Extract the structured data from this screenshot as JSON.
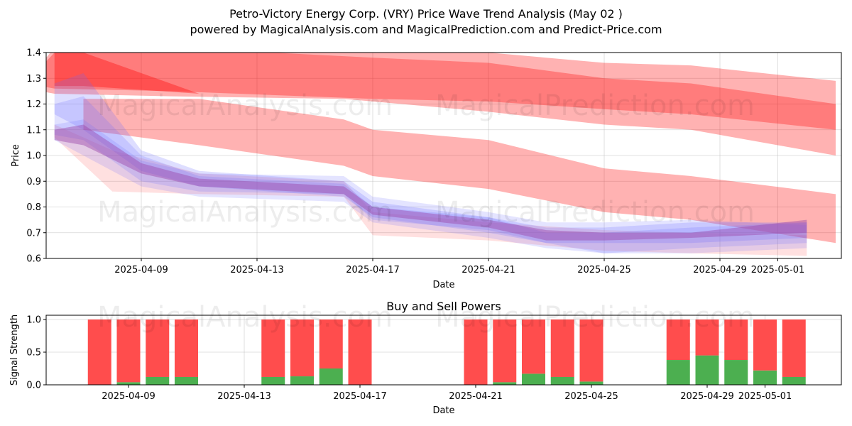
{
  "title_line1": "Petro-Victory Energy Corp. (VRY) Price Wave Trend Analysis (May 02 )",
  "title_line2": "powered by MagicalAnalysis.com and MagicalPrediction.com and Predict-Price.com",
  "watermarks": [
    "MagicalAnalysis.com",
    "MagicalPrediction.com"
  ],
  "colors": {
    "bull": "#4caf50",
    "bear": "#ff4d4d",
    "band_red": "#ff0000",
    "band_blue": "#6a6aff"
  },
  "chart_data": [
    {
      "type": "area",
      "title": "",
      "xlabel": "Date",
      "ylabel": "Price",
      "ylim": [
        0.6,
        1.4
      ],
      "yticks": [
        "0.6",
        "0.7",
        "0.8",
        "0.9",
        "1.0",
        "1.1",
        "1.2",
        "1.3",
        "1.4"
      ],
      "xticks": [
        "2025-04-09",
        "2025-04-13",
        "2025-04-17",
        "2025-04-21",
        "2025-04-25",
        "2025-04-29",
        "2025-05-01"
      ],
      "grid": true,
      "red_bands": [
        {
          "name": "upper-outer",
          "x": [
            "2025-04-05",
            "2025-04-06",
            "2025-04-10",
            "2025-04-16",
            "2025-04-21",
            "2025-04-25",
            "2025-04-28",
            "2025-05-03"
          ],
          "upper": [
            1.28,
            1.4,
            1.44,
            1.42,
            1.4,
            1.36,
            1.35,
            1.29
          ],
          "lower": [
            1.26,
            1.24,
            1.23,
            1.22,
            1.17,
            1.12,
            1.1,
            1.0
          ]
        },
        {
          "name": "upper-inner",
          "x": [
            "2025-04-05",
            "2025-04-06",
            "2025-04-10",
            "2025-04-17",
            "2025-04-21",
            "2025-04-25",
            "2025-04-28",
            "2025-05-03"
          ],
          "upper": [
            1.28,
            1.42,
            1.42,
            1.38,
            1.36,
            1.3,
            1.28,
            1.2
          ],
          "lower": [
            1.28,
            1.26,
            1.25,
            1.22,
            1.21,
            1.18,
            1.16,
            1.1
          ]
        },
        {
          "name": "spike",
          "x": [
            "2025-04-06",
            "2025-04-07",
            "2025-04-11"
          ],
          "upper": [
            1.4,
            1.4,
            1.24
          ],
          "lower": [
            1.27,
            1.27,
            1.24
          ]
        },
        {
          "name": "middle",
          "x": [
            "2025-04-07",
            "2025-04-11",
            "2025-04-16",
            "2025-04-17",
            "2025-04-21",
            "2025-04-25",
            "2025-04-28",
            "2025-05-03"
          ],
          "upper": [
            1.22,
            1.22,
            1.14,
            1.1,
            1.06,
            0.95,
            0.92,
            0.85
          ],
          "lower": [
            1.1,
            1.04,
            0.96,
            0.92,
            0.87,
            0.78,
            0.75,
            0.66
          ]
        },
        {
          "name": "lower-pink",
          "x": [
            "2025-04-06",
            "2025-04-08",
            "2025-04-11",
            "2025-04-16",
            "2025-04-17",
            "2025-04-21",
            "2025-04-25",
            "2025-04-28",
            "2025-05-02"
          ],
          "upper": [
            1.12,
            1.02,
            0.93,
            0.9,
            0.78,
            0.74,
            0.71,
            0.7,
            0.69
          ],
          "lower": [
            1.07,
            0.86,
            0.85,
            0.84,
            0.69,
            0.67,
            0.63,
            0.62,
            0.61
          ]
        }
      ],
      "blue_bands": [
        {
          "name": "wave-1",
          "x": [
            "2025-04-06",
            "2025-04-07",
            "2025-04-09",
            "2025-04-11",
            "2025-04-16",
            "2025-04-17",
            "2025-04-21",
            "2025-04-23",
            "2025-04-25",
            "2025-04-28",
            "2025-05-02"
          ],
          "upper": [
            1.28,
            1.32,
            1.02,
            0.94,
            0.9,
            0.82,
            0.76,
            0.72,
            0.72,
            0.74,
            0.74
          ],
          "lower": [
            1.16,
            1.1,
            0.94,
            0.88,
            0.84,
            0.76,
            0.7,
            0.66,
            0.66,
            0.66,
            0.68
          ]
        },
        {
          "name": "wave-2",
          "x": [
            "2025-04-06",
            "2025-04-07",
            "2025-04-09",
            "2025-04-11",
            "2025-04-16",
            "2025-04-17",
            "2025-04-21",
            "2025-04-23",
            "2025-04-25",
            "2025-04-28",
            "2025-05-02"
          ],
          "upper": [
            1.2,
            1.23,
            1.0,
            0.92,
            0.89,
            0.8,
            0.76,
            0.7,
            0.7,
            0.72,
            0.74
          ],
          "lower": [
            1.08,
            1.06,
            0.9,
            0.86,
            0.85,
            0.75,
            0.71,
            0.66,
            0.62,
            0.64,
            0.66
          ]
        },
        {
          "name": "wave-3",
          "x": [
            "2025-04-06",
            "2025-04-07",
            "2025-04-09",
            "2025-04-11",
            "2025-04-16",
            "2025-04-17",
            "2025-04-21",
            "2025-04-23",
            "2025-04-25",
            "2025-04-28",
            "2025-05-02"
          ],
          "upper": [
            1.12,
            1.14,
            0.98,
            0.93,
            0.92,
            0.84,
            0.78,
            0.74,
            0.74,
            0.75,
            0.73
          ],
          "lower": [
            1.06,
            1.0,
            0.88,
            0.84,
            0.82,
            0.74,
            0.68,
            0.64,
            0.62,
            0.62,
            0.64
          ]
        },
        {
          "name": "wave-4",
          "x": [
            "2025-04-06",
            "2025-04-07",
            "2025-04-09",
            "2025-04-11",
            "2025-04-16",
            "2025-04-17",
            "2025-04-21",
            "2025-04-23",
            "2025-04-25",
            "2025-04-28",
            "2025-05-02"
          ],
          "upper": [
            1.1,
            1.12,
            0.97,
            0.91,
            0.88,
            0.8,
            0.75,
            0.71,
            0.7,
            0.7,
            0.75
          ],
          "lower": [
            1.06,
            1.04,
            0.93,
            0.88,
            0.85,
            0.77,
            0.72,
            0.67,
            0.67,
            0.68,
            0.7
          ]
        }
      ]
    },
    {
      "type": "bar",
      "title": "Buy and Sell Powers",
      "xlabel": "Date",
      "ylabel": "Signal Strength",
      "ylim": [
        0.0,
        1.0
      ],
      "yticks": [
        "0.0",
        "0.5",
        "1.0"
      ],
      "xticks": [
        "2025-04-09",
        "2025-04-13",
        "2025-04-17",
        "2025-04-21",
        "2025-04-25",
        "2025-04-29",
        "2025-05-01"
      ],
      "grid": true,
      "categories": [
        "2025-04-08",
        "2025-04-09",
        "2025-04-10",
        "2025-04-11",
        "2025-04-14",
        "2025-04-15",
        "2025-04-16",
        "2025-04-17",
        "2025-04-21",
        "2025-04-22",
        "2025-04-23",
        "2025-04-24",
        "2025-04-25",
        "2025-04-28",
        "2025-04-29",
        "2025-04-30",
        "2025-05-01",
        "2025-05-02"
      ],
      "series": [
        {
          "name": "Buy",
          "color": "#4caf50",
          "values": [
            0.0,
            0.04,
            0.12,
            0.12,
            0.12,
            0.13,
            0.25,
            0.0,
            0.0,
            0.04,
            0.17,
            0.12,
            0.05,
            0.38,
            0.45,
            0.38,
            0.22,
            0.12
          ]
        },
        {
          "name": "Sell",
          "color": "#ff4d4d",
          "values": [
            1.0,
            0.96,
            0.88,
            0.88,
            0.88,
            0.87,
            0.75,
            1.0,
            1.0,
            0.96,
            0.83,
            0.88,
            0.95,
            0.62,
            0.55,
            0.62,
            0.78,
            0.88
          ]
        }
      ]
    }
  ]
}
